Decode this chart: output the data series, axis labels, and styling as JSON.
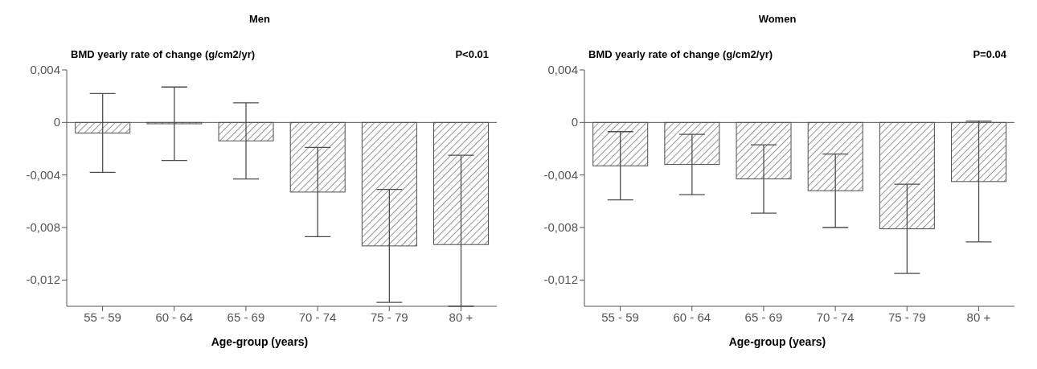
{
  "chart_data": [
    {
      "type": "bar",
      "title": "Men",
      "ylabel": "BMD yearly rate of change (g/cm2/yr)",
      "xlabel": "Age-group (years)",
      "annotations": [
        "P<0.01"
      ],
      "categories": [
        "55 - 59",
        "60 - 64",
        "65 - 69",
        "70 - 74",
        "75 - 79",
        "80 +"
      ],
      "values": [
        -0.0008,
        -0.0001,
        -0.0014,
        -0.0053,
        -0.0094,
        -0.0093
      ],
      "errors": [
        0.003,
        0.0028,
        0.0029,
        0.0034,
        0.0043,
        [
          -0.014,
          -0.0025
        ]
      ],
      "color": "#4d4d4d",
      "ylim": [
        -0.014,
        0.004
      ],
      "yticks": [
        {
          "value": 0.004,
          "label": "0,004"
        },
        0,
        {
          "value": -0.004,
          "label": "-0,004"
        },
        {
          "value": -0.008,
          "label": "-0,008"
        },
        {
          "value": -0.012,
          "label": "-0,012"
        }
      ],
      "ref_lines": [
        {
          "axis": "y",
          "value": 0,
          "label": null
        }
      ],
      "grid": false,
      "legend": false
    },
    {
      "type": "bar",
      "title": "Women",
      "ylabel": "BMD yearly rate of change (g/cm2/yr)",
      "xlabel": "Age-group (years)",
      "annotations": [
        "P=0.04"
      ],
      "categories": [
        "55 - 59",
        "60 - 64",
        "65 - 69",
        "70 - 74",
        "75 - 79",
        "80 +"
      ],
      "values": [
        -0.0033,
        -0.0032,
        -0.0043,
        -0.0052,
        -0.0081,
        -0.0045
      ],
      "errors": [
        0.0026,
        0.0023,
        0.0026,
        0.0028,
        0.0034,
        0.0046
      ],
      "color": "#4d4d4d",
      "ylim": [
        -0.014,
        0.004
      ],
      "yticks": [
        {
          "value": 0.004,
          "label": "0,004"
        },
        0,
        {
          "value": -0.004,
          "label": "-0,004"
        },
        {
          "value": -0.008,
          "label": "-0,008"
        },
        {
          "value": -0.012,
          "label": "-0,012"
        }
      ],
      "ref_lines": [
        {
          "axis": "y",
          "value": 0,
          "label": null
        }
      ],
      "grid": false,
      "legend": false
    }
  ]
}
